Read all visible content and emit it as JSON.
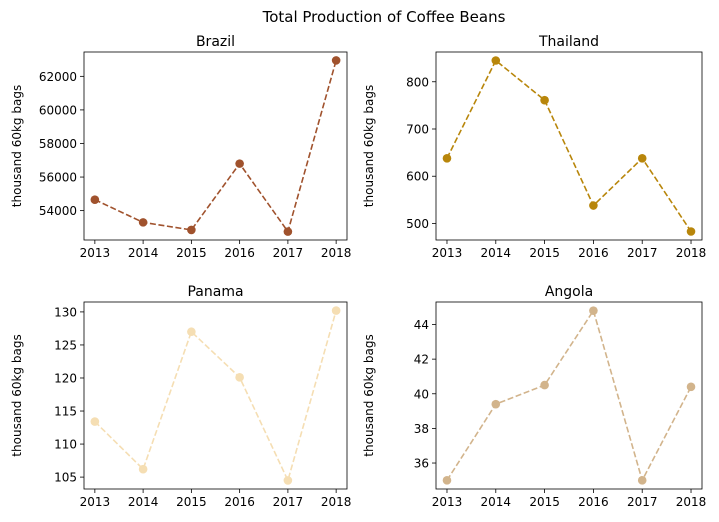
{
  "chart_data": {
    "suptitle": "Total Production of Coffee Beans",
    "type": "line",
    "line_style": "dashed",
    "marker": "circle",
    "grid": false,
    "panels": [
      {
        "title": "Brazil",
        "ylabel": "thousand 60kg bags",
        "color": "#a0522d",
        "x": [
          2013,
          2014,
          2015,
          2016,
          2017,
          2018
        ],
        "values": [
          54650,
          53300,
          52850,
          56800,
          52750,
          62950
        ],
        "ylim": [
          52250,
          63450
        ],
        "yticks": [
          54000,
          56000,
          58000,
          60000,
          62000
        ]
      },
      {
        "title": "Thailand",
        "ylabel": "thousand 60kg bags",
        "color": "#b8860b",
        "x": [
          2013,
          2014,
          2015,
          2016,
          2017,
          2018
        ],
        "values": [
          638,
          845,
          761,
          538,
          638,
          483
        ],
        "ylim": [
          465,
          863
        ],
        "yticks": [
          500,
          600,
          700,
          800
        ]
      },
      {
        "title": "Panama",
        "ylabel": "thousand 60kg bags",
        "color": "#f5deb3",
        "x": [
          2013,
          2014,
          2015,
          2016,
          2017,
          2018
        ],
        "values": [
          113.4,
          106.2,
          127.0,
          120.1,
          104.5,
          130.2
        ],
        "ylim": [
          103.2,
          131.5
        ],
        "yticks": [
          105,
          110,
          115,
          120,
          125,
          130
        ]
      },
      {
        "title": "Angola",
        "ylabel": "thousand 60kg bags",
        "color": "#d2b48c",
        "x": [
          2013,
          2014,
          2015,
          2016,
          2017,
          2018
        ],
        "values": [
          35.0,
          39.4,
          40.5,
          44.8,
          35.0,
          40.4
        ],
        "ylim": [
          34.5,
          45.3
        ],
        "yticks": [
          36,
          38,
          40,
          42,
          44
        ]
      }
    ]
  }
}
